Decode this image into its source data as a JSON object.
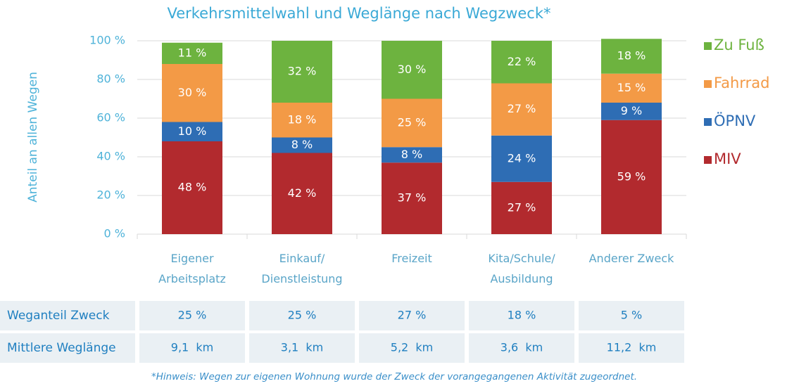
{
  "chart_data": {
    "type": "stacked_bar",
    "title": "Verkehrsmittelwahl und Weglänge nach Wegzweck*",
    "y_label": "Anteil an allen Wegen",
    "categories": [
      "Eigener\nArbeitsplatz",
      "Einkauf/\nDienstleistung",
      "Freizeit",
      "Kita/Schule/\nAusbildung",
      "Anderer Zweck"
    ],
    "series": [
      {
        "name": "MIV",
        "color": "#b22a2e",
        "values": [
          48,
          42,
          37,
          27,
          59
        ],
        "value_labels": [
          "48 %",
          "42 %",
          "37 %",
          "27 %",
          "59 %"
        ]
      },
      {
        "name": "ÖPNV",
        "color": "#2e6db4",
        "values": [
          10,
          8,
          8,
          24,
          9
        ],
        "value_labels": [
          "10 %",
          "8 %",
          "8 %",
          "24 %",
          "9 %"
        ]
      },
      {
        "name": "Fahrrad",
        "color": "#f39a46",
        "values": [
          30,
          18,
          25,
          27,
          15
        ],
        "value_labels": [
          "30 %",
          "18 %",
          "25 %",
          "27 %",
          "15 %"
        ]
      },
      {
        "name": "Zu Fuß",
        "color": "#6db33f",
        "values": [
          11,
          32,
          30,
          22,
          18
        ],
        "value_labels": [
          "11 %",
          "32 %",
          "30 %",
          "22 %",
          "18 %"
        ]
      }
    ],
    "ylim": [
      0,
      100
    ],
    "yticks": [
      {
        "value": 0,
        "label": "0 %"
      },
      {
        "value": 20,
        "label": "20 %"
      },
      {
        "value": 40,
        "label": "40 %"
      },
      {
        "value": 60,
        "label": "60 %"
      },
      {
        "value": 80,
        "label": "80 %"
      },
      {
        "value": 100,
        "label": "100 %"
      }
    ],
    "grid": true,
    "legend": "right"
  },
  "table": {
    "rows": [
      {
        "label": "Weganteil Zweck",
        "values": [
          "25 %",
          "25 %",
          "27 %",
          "18 %",
          "5 %"
        ]
      },
      {
        "label": "Mittlere Weglänge",
        "values": [
          "9,1  km",
          "3,1  km",
          "5,2  km",
          "3,6  km",
          "11,2  km"
        ]
      }
    ]
  },
  "note": "*Hinweis: Wegen zur eigenen Wohnung wurde der Zweck der vorangegangenen Aktivität zugeordnet."
}
